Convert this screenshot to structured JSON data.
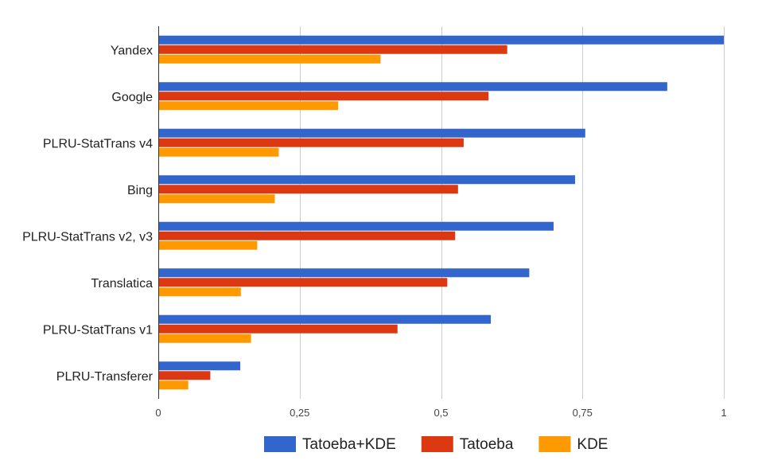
{
  "chart_data": {
    "type": "bar",
    "orientation": "horizontal",
    "categories": [
      "Yandex",
      "Google",
      "PLRU-StatTrans v4",
      "Bing",
      "PLRU-StatTrans v2, v3",
      "Translatica",
      "PLRU-StatTrans v1",
      "PLRU-Transferer"
    ],
    "series": [
      {
        "name": "Tatoeba+KDE",
        "color": "#3366cc",
        "values": [
          1.0,
          0.9,
          0.755,
          0.737,
          0.699,
          0.656,
          0.588,
          0.145
        ]
      },
      {
        "name": "Tatoeba",
        "color": "#dc3912",
        "values": [
          0.617,
          0.584,
          0.54,
          0.53,
          0.525,
          0.511,
          0.423,
          0.092
        ]
      },
      {
        "name": "KDE",
        "color": "#ff9900",
        "values": [
          0.393,
          0.318,
          0.213,
          0.206,
          0.175,
          0.146,
          0.164,
          0.053
        ]
      }
    ],
    "xticks": [
      "0",
      "0,25",
      "0,5",
      "0,75",
      "1"
    ],
    "xlim": [
      0,
      1
    ],
    "title": "",
    "xlabel": "",
    "ylabel": "",
    "grid": true,
    "legend_position": "bottom"
  }
}
